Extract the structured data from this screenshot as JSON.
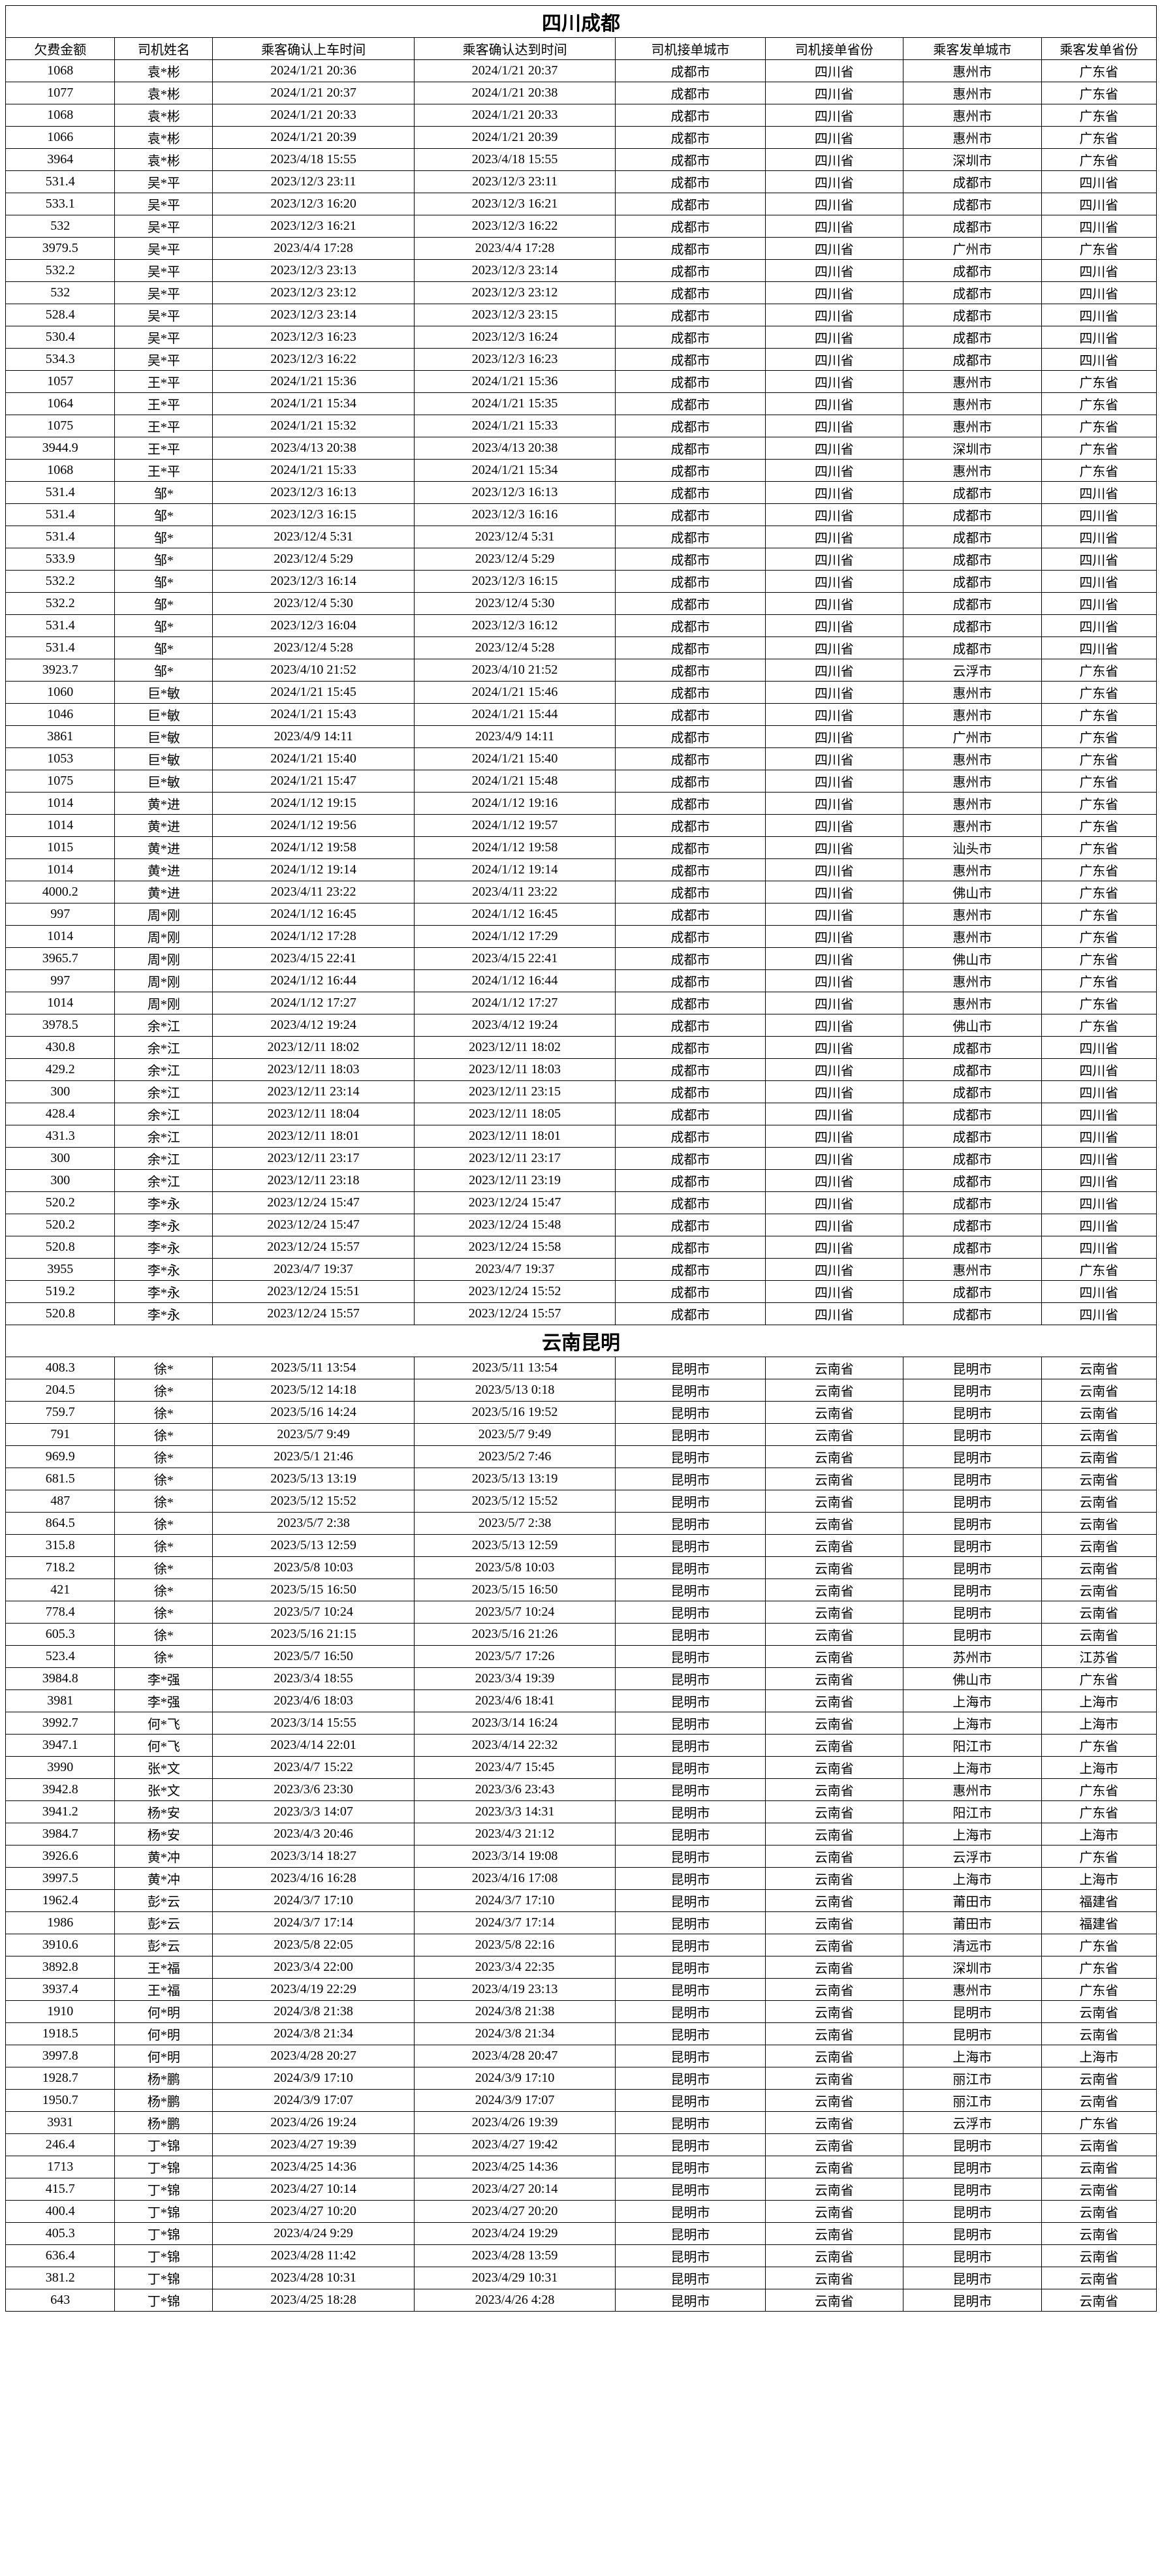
{
  "columns": [
    "欠费金额",
    "司机姓名",
    "乘客确认上车时间",
    "乘客确认达到时间",
    "司机接单城市",
    "司机接单省份",
    "乘客发单城市",
    "乘客发单省份"
  ],
  "sections": [
    {
      "title": "四川成都",
      "rows": [
        [
          "1068",
          "袁*彬",
          "2024/1/21 20:36",
          "2024/1/21 20:37",
          "成都市",
          "四川省",
          "惠州市",
          "广东省"
        ],
        [
          "1077",
          "袁*彬",
          "2024/1/21 20:37",
          "2024/1/21 20:38",
          "成都市",
          "四川省",
          "惠州市",
          "广东省"
        ],
        [
          "1068",
          "袁*彬",
          "2024/1/21 20:33",
          "2024/1/21 20:33",
          "成都市",
          "四川省",
          "惠州市",
          "广东省"
        ],
        [
          "1066",
          "袁*彬",
          "2024/1/21 20:39",
          "2024/1/21 20:39",
          "成都市",
          "四川省",
          "惠州市",
          "广东省"
        ],
        [
          "3964",
          "袁*彬",
          "2023/4/18 15:55",
          "2023/4/18 15:55",
          "成都市",
          "四川省",
          "深圳市",
          "广东省"
        ],
        [
          "531.4",
          "吴*平",
          "2023/12/3 23:11",
          "2023/12/3 23:11",
          "成都市",
          "四川省",
          "成都市",
          "四川省"
        ],
        [
          "533.1",
          "吴*平",
          "2023/12/3 16:20",
          "2023/12/3 16:21",
          "成都市",
          "四川省",
          "成都市",
          "四川省"
        ],
        [
          "532",
          "吴*平",
          "2023/12/3 16:21",
          "2023/12/3 16:22",
          "成都市",
          "四川省",
          "成都市",
          "四川省"
        ],
        [
          "3979.5",
          "吴*平",
          "2023/4/4 17:28",
          "2023/4/4 17:28",
          "成都市",
          "四川省",
          "广州市",
          "广东省"
        ],
        [
          "532.2",
          "吴*平",
          "2023/12/3 23:13",
          "2023/12/3 23:14",
          "成都市",
          "四川省",
          "成都市",
          "四川省"
        ],
        [
          "532",
          "吴*平",
          "2023/12/3 23:12",
          "2023/12/3 23:12",
          "成都市",
          "四川省",
          "成都市",
          "四川省"
        ],
        [
          "528.4",
          "吴*平",
          "2023/12/3 23:14",
          "2023/12/3 23:15",
          "成都市",
          "四川省",
          "成都市",
          "四川省"
        ],
        [
          "530.4",
          "吴*平",
          "2023/12/3 16:23",
          "2023/12/3 16:24",
          "成都市",
          "四川省",
          "成都市",
          "四川省"
        ],
        [
          "534.3",
          "吴*平",
          "2023/12/3 16:22",
          "2023/12/3 16:23",
          "成都市",
          "四川省",
          "成都市",
          "四川省"
        ],
        [
          "1057",
          "王*平",
          "2024/1/21 15:36",
          "2024/1/21 15:36",
          "成都市",
          "四川省",
          "惠州市",
          "广东省"
        ],
        [
          "1064",
          "王*平",
          "2024/1/21 15:34",
          "2024/1/21 15:35",
          "成都市",
          "四川省",
          "惠州市",
          "广东省"
        ],
        [
          "1075",
          "王*平",
          "2024/1/21 15:32",
          "2024/1/21 15:33",
          "成都市",
          "四川省",
          "惠州市",
          "广东省"
        ],
        [
          "3944.9",
          "王*平",
          "2023/4/13 20:38",
          "2023/4/13 20:38",
          "成都市",
          "四川省",
          "深圳市",
          "广东省"
        ],
        [
          "1068",
          "王*平",
          "2024/1/21 15:33",
          "2024/1/21 15:34",
          "成都市",
          "四川省",
          "惠州市",
          "广东省"
        ],
        [
          "531.4",
          "邹*",
          "2023/12/3 16:13",
          "2023/12/3 16:13",
          "成都市",
          "四川省",
          "成都市",
          "四川省"
        ],
        [
          "531.4",
          "邹*",
          "2023/12/3 16:15",
          "2023/12/3 16:16",
          "成都市",
          "四川省",
          "成都市",
          "四川省"
        ],
        [
          "531.4",
          "邹*",
          "2023/12/4 5:31",
          "2023/12/4 5:31",
          "成都市",
          "四川省",
          "成都市",
          "四川省"
        ],
        [
          "533.9",
          "邹*",
          "2023/12/4 5:29",
          "2023/12/4 5:29",
          "成都市",
          "四川省",
          "成都市",
          "四川省"
        ],
        [
          "532.2",
          "邹*",
          "2023/12/3 16:14",
          "2023/12/3 16:15",
          "成都市",
          "四川省",
          "成都市",
          "四川省"
        ],
        [
          "532.2",
          "邹*",
          "2023/12/4 5:30",
          "2023/12/4 5:30",
          "成都市",
          "四川省",
          "成都市",
          "四川省"
        ],
        [
          "531.4",
          "邹*",
          "2023/12/3 16:04",
          "2023/12/3 16:12",
          "成都市",
          "四川省",
          "成都市",
          "四川省"
        ],
        [
          "531.4",
          "邹*",
          "2023/12/4 5:28",
          "2023/12/4 5:28",
          "成都市",
          "四川省",
          "成都市",
          "四川省"
        ],
        [
          "3923.7",
          "邹*",
          "2023/4/10 21:52",
          "2023/4/10 21:52",
          "成都市",
          "四川省",
          "云浮市",
          "广东省"
        ],
        [
          "1060",
          "巨*敏",
          "2024/1/21 15:45",
          "2024/1/21 15:46",
          "成都市",
          "四川省",
          "惠州市",
          "广东省"
        ],
        [
          "1046",
          "巨*敏",
          "2024/1/21 15:43",
          "2024/1/21 15:44",
          "成都市",
          "四川省",
          "惠州市",
          "广东省"
        ],
        [
          "3861",
          "巨*敏",
          "2023/4/9 14:11",
          "2023/4/9 14:11",
          "成都市",
          "四川省",
          "广州市",
          "广东省"
        ],
        [
          "1053",
          "巨*敏",
          "2024/1/21 15:40",
          "2024/1/21 15:40",
          "成都市",
          "四川省",
          "惠州市",
          "广东省"
        ],
        [
          "1075",
          "巨*敏",
          "2024/1/21 15:47",
          "2024/1/21 15:48",
          "成都市",
          "四川省",
          "惠州市",
          "广东省"
        ],
        [
          "1014",
          "黄*进",
          "2024/1/12 19:15",
          "2024/1/12 19:16",
          "成都市",
          "四川省",
          "惠州市",
          "广东省"
        ],
        [
          "1014",
          "黄*进",
          "2024/1/12 19:56",
          "2024/1/12 19:57",
          "成都市",
          "四川省",
          "惠州市",
          "广东省"
        ],
        [
          "1015",
          "黄*进",
          "2024/1/12 19:58",
          "2024/1/12 19:58",
          "成都市",
          "四川省",
          "汕头市",
          "广东省"
        ],
        [
          "1014",
          "黄*进",
          "2024/1/12 19:14",
          "2024/1/12 19:14",
          "成都市",
          "四川省",
          "惠州市",
          "广东省"
        ],
        [
          "4000.2",
          "黄*进",
          "2023/4/11 23:22",
          "2023/4/11 23:22",
          "成都市",
          "四川省",
          "佛山市",
          "广东省"
        ],
        [
          "997",
          "周*刚",
          "2024/1/12 16:45",
          "2024/1/12 16:45",
          "成都市",
          "四川省",
          "惠州市",
          "广东省"
        ],
        [
          "1014",
          "周*刚",
          "2024/1/12 17:28",
          "2024/1/12 17:29",
          "成都市",
          "四川省",
          "惠州市",
          "广东省"
        ],
        [
          "3965.7",
          "周*刚",
          "2023/4/15 22:41",
          "2023/4/15 22:41",
          "成都市",
          "四川省",
          "佛山市",
          "广东省"
        ],
        [
          "997",
          "周*刚",
          "2024/1/12 16:44",
          "2024/1/12 16:44",
          "成都市",
          "四川省",
          "惠州市",
          "广东省"
        ],
        [
          "1014",
          "周*刚",
          "2024/1/12 17:27",
          "2024/1/12 17:27",
          "成都市",
          "四川省",
          "惠州市",
          "广东省"
        ],
        [
          "3978.5",
          "余*江",
          "2023/4/12 19:24",
          "2023/4/12 19:24",
          "成都市",
          "四川省",
          "佛山市",
          "广东省"
        ],
        [
          "430.8",
          "余*江",
          "2023/12/11 18:02",
          "2023/12/11 18:02",
          "成都市",
          "四川省",
          "成都市",
          "四川省"
        ],
        [
          "429.2",
          "余*江",
          "2023/12/11 18:03",
          "2023/12/11 18:03",
          "成都市",
          "四川省",
          "成都市",
          "四川省"
        ],
        [
          "300",
          "余*江",
          "2023/12/11 23:14",
          "2023/12/11 23:15",
          "成都市",
          "四川省",
          "成都市",
          "四川省"
        ],
        [
          "428.4",
          "余*江",
          "2023/12/11 18:04",
          "2023/12/11 18:05",
          "成都市",
          "四川省",
          "成都市",
          "四川省"
        ],
        [
          "431.3",
          "余*江",
          "2023/12/11 18:01",
          "2023/12/11 18:01",
          "成都市",
          "四川省",
          "成都市",
          "四川省"
        ],
        [
          "300",
          "余*江",
          "2023/12/11 23:17",
          "2023/12/11 23:17",
          "成都市",
          "四川省",
          "成都市",
          "四川省"
        ],
        [
          "300",
          "余*江",
          "2023/12/11 23:18",
          "2023/12/11 23:19",
          "成都市",
          "四川省",
          "成都市",
          "四川省"
        ],
        [
          "520.2",
          "李*永",
          "2023/12/24 15:47",
          "2023/12/24 15:47",
          "成都市",
          "四川省",
          "成都市",
          "四川省"
        ],
        [
          "520.2",
          "李*永",
          "2023/12/24 15:47",
          "2023/12/24 15:48",
          "成都市",
          "四川省",
          "成都市",
          "四川省"
        ],
        [
          "520.8",
          "李*永",
          "2023/12/24 15:57",
          "2023/12/24 15:58",
          "成都市",
          "四川省",
          "成都市",
          "四川省"
        ],
        [
          "3955",
          "李*永",
          "2023/4/7 19:37",
          "2023/4/7 19:37",
          "成都市",
          "四川省",
          "惠州市",
          "广东省"
        ],
        [
          "519.2",
          "李*永",
          "2023/12/24 15:51",
          "2023/12/24 15:52",
          "成都市",
          "四川省",
          "成都市",
          "四川省"
        ],
        [
          "520.8",
          "李*永",
          "2023/12/24 15:57",
          "2023/12/24 15:57",
          "成都市",
          "四川省",
          "成都市",
          "四川省"
        ]
      ]
    },
    {
      "title": "云南昆明",
      "rows": [
        [
          "408.3",
          "徐*",
          "2023/5/11 13:54",
          "2023/5/11 13:54",
          "昆明市",
          "云南省",
          "昆明市",
          "云南省"
        ],
        [
          "204.5",
          "徐*",
          "2023/5/12 14:18",
          "2023/5/13 0:18",
          "昆明市",
          "云南省",
          "昆明市",
          "云南省"
        ],
        [
          "759.7",
          "徐*",
          "2023/5/16 14:24",
          "2023/5/16 19:52",
          "昆明市",
          "云南省",
          "昆明市",
          "云南省"
        ],
        [
          "791",
          "徐*",
          "2023/5/7 9:49",
          "2023/5/7 9:49",
          "昆明市",
          "云南省",
          "昆明市",
          "云南省"
        ],
        [
          "969.9",
          "徐*",
          "2023/5/1 21:46",
          "2023/5/2 7:46",
          "昆明市",
          "云南省",
          "昆明市",
          "云南省"
        ],
        [
          "681.5",
          "徐*",
          "2023/5/13 13:19",
          "2023/5/13 13:19",
          "昆明市",
          "云南省",
          "昆明市",
          "云南省"
        ],
        [
          "487",
          "徐*",
          "2023/5/12 15:52",
          "2023/5/12 15:52",
          "昆明市",
          "云南省",
          "昆明市",
          "云南省"
        ],
        [
          "864.5",
          "徐*",
          "2023/5/7 2:38",
          "2023/5/7 2:38",
          "昆明市",
          "云南省",
          "昆明市",
          "云南省"
        ],
        [
          "315.8",
          "徐*",
          "2023/5/13 12:59",
          "2023/5/13 12:59",
          "昆明市",
          "云南省",
          "昆明市",
          "云南省"
        ],
        [
          "718.2",
          "徐*",
          "2023/5/8 10:03",
          "2023/5/8 10:03",
          "昆明市",
          "云南省",
          "昆明市",
          "云南省"
        ],
        [
          "421",
          "徐*",
          "2023/5/15 16:50",
          "2023/5/15 16:50",
          "昆明市",
          "云南省",
          "昆明市",
          "云南省"
        ],
        [
          "778.4",
          "徐*",
          "2023/5/7 10:24",
          "2023/5/7 10:24",
          "昆明市",
          "云南省",
          "昆明市",
          "云南省"
        ],
        [
          "605.3",
          "徐*",
          "2023/5/16 21:15",
          "2023/5/16 21:26",
          "昆明市",
          "云南省",
          "昆明市",
          "云南省"
        ],
        [
          "523.4",
          "徐*",
          "2023/5/7 16:50",
          "2023/5/7 17:26",
          "昆明市",
          "云南省",
          "苏州市",
          "江苏省"
        ],
        [
          "3984.8",
          "李*强",
          "2023/3/4 18:55",
          "2023/3/4 19:39",
          "昆明市",
          "云南省",
          "佛山市",
          "广东省"
        ],
        [
          "3981",
          "李*强",
          "2023/4/6 18:03",
          "2023/4/6 18:41",
          "昆明市",
          "云南省",
          "上海市",
          "上海市"
        ],
        [
          "3992.7",
          "何*飞",
          "2023/3/14 15:55",
          "2023/3/14 16:24",
          "昆明市",
          "云南省",
          "上海市",
          "上海市"
        ],
        [
          "3947.1",
          "何*飞",
          "2023/4/14 22:01",
          "2023/4/14 22:32",
          "昆明市",
          "云南省",
          "阳江市",
          "广东省"
        ],
        [
          "3990",
          "张*文",
          "2023/4/7 15:22",
          "2023/4/7 15:45",
          "昆明市",
          "云南省",
          "上海市",
          "上海市"
        ],
        [
          "3942.8",
          "张*文",
          "2023/3/6 23:30",
          "2023/3/6 23:43",
          "昆明市",
          "云南省",
          "惠州市",
          "广东省"
        ],
        [
          "3941.2",
          "杨*安",
          "2023/3/3 14:07",
          "2023/3/3 14:31",
          "昆明市",
          "云南省",
          "阳江市",
          "广东省"
        ],
        [
          "3984.7",
          "杨*安",
          "2023/4/3 20:46",
          "2023/4/3 21:12",
          "昆明市",
          "云南省",
          "上海市",
          "上海市"
        ],
        [
          "3926.6",
          "黄*冲",
          "2023/3/14 18:27",
          "2023/3/14 19:08",
          "昆明市",
          "云南省",
          "云浮市",
          "广东省"
        ],
        [
          "3997.5",
          "黄*冲",
          "2023/4/16 16:28",
          "2023/4/16 17:08",
          "昆明市",
          "云南省",
          "上海市",
          "上海市"
        ],
        [
          "1962.4",
          "彭*云",
          "2024/3/7 17:10",
          "2024/3/7 17:10",
          "昆明市",
          "云南省",
          "莆田市",
          "福建省"
        ],
        [
          "1986",
          "彭*云",
          "2024/3/7 17:14",
          "2024/3/7 17:14",
          "昆明市",
          "云南省",
          "莆田市",
          "福建省"
        ],
        [
          "3910.6",
          "彭*云",
          "2023/5/8 22:05",
          "2023/5/8 22:16",
          "昆明市",
          "云南省",
          "清远市",
          "广东省"
        ],
        [
          "3892.8",
          "王*福",
          "2023/3/4 22:00",
          "2023/3/4 22:35",
          "昆明市",
          "云南省",
          "深圳市",
          "广东省"
        ],
        [
          "3937.4",
          "王*福",
          "2023/4/19 22:29",
          "2023/4/19 23:13",
          "昆明市",
          "云南省",
          "惠州市",
          "广东省"
        ],
        [
          "1910",
          "何*明",
          "2024/3/8 21:38",
          "2024/3/8 21:38",
          "昆明市",
          "云南省",
          "昆明市",
          "云南省"
        ],
        [
          "1918.5",
          "何*明",
          "2024/3/8 21:34",
          "2024/3/8 21:34",
          "昆明市",
          "云南省",
          "昆明市",
          "云南省"
        ],
        [
          "3997.8",
          "何*明",
          "2023/4/28 20:27",
          "2023/4/28 20:47",
          "昆明市",
          "云南省",
          "上海市",
          "上海市"
        ],
        [
          "1928.7",
          "杨*鹏",
          "2024/3/9 17:10",
          "2024/3/9 17:10",
          "昆明市",
          "云南省",
          "丽江市",
          "云南省"
        ],
        [
          "1950.7",
          "杨*鹏",
          "2024/3/9 17:07",
          "2024/3/9 17:07",
          "昆明市",
          "云南省",
          "丽江市",
          "云南省"
        ],
        [
          "3931",
          "杨*鹏",
          "2023/4/26 19:24",
          "2023/4/26 19:39",
          "昆明市",
          "云南省",
          "云浮市",
          "广东省"
        ],
        [
          "246.4",
          "丁*锦",
          "2023/4/27 19:39",
          "2023/4/27 19:42",
          "昆明市",
          "云南省",
          "昆明市",
          "云南省"
        ],
        [
          "1713",
          "丁*锦",
          "2023/4/25 14:36",
          "2023/4/25 14:36",
          "昆明市",
          "云南省",
          "昆明市",
          "云南省"
        ],
        [
          "415.7",
          "丁*锦",
          "2023/4/27 10:14",
          "2023/4/27 20:14",
          "昆明市",
          "云南省",
          "昆明市",
          "云南省"
        ],
        [
          "400.4",
          "丁*锦",
          "2023/4/27 10:20",
          "2023/4/27 20:20",
          "昆明市",
          "云南省",
          "昆明市",
          "云南省"
        ],
        [
          "405.3",
          "丁*锦",
          "2023/4/24 9:29",
          "2023/4/24 19:29",
          "昆明市",
          "云南省",
          "昆明市",
          "云南省"
        ],
        [
          "636.4",
          "丁*锦",
          "2023/4/28 11:42",
          "2023/4/28 13:59",
          "昆明市",
          "云南省",
          "昆明市",
          "云南省"
        ],
        [
          "381.2",
          "丁*锦",
          "2023/4/28 10:31",
          "2023/4/29 10:31",
          "昆明市",
          "云南省",
          "昆明市",
          "云南省"
        ],
        [
          "643",
          "丁*锦",
          "2023/4/25 18:28",
          "2023/4/26 4:28",
          "昆明市",
          "云南省",
          "昆明市",
          "云南省"
        ]
      ]
    }
  ]
}
